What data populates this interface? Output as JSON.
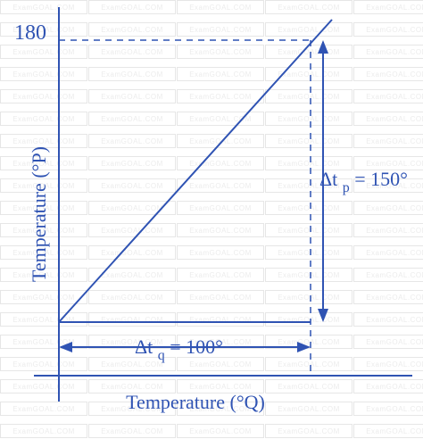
{
  "diagram": {
    "y_tick_label": "180",
    "y_axis_label": "Temperature (°P)",
    "x_axis_label": "Temperature (°Q)",
    "delta_p": {
      "prefix": "Δt",
      "subscript": "p",
      "suffix": " = 150°"
    },
    "delta_q": {
      "prefix": "Δt",
      "subscript": "q",
      "suffix": " = 100°"
    }
  },
  "watermark": {
    "text": "ExamGOAL.COM"
  },
  "colors": {
    "line": "#2f53b3",
    "watermark_border": "#e6e6e6"
  }
}
